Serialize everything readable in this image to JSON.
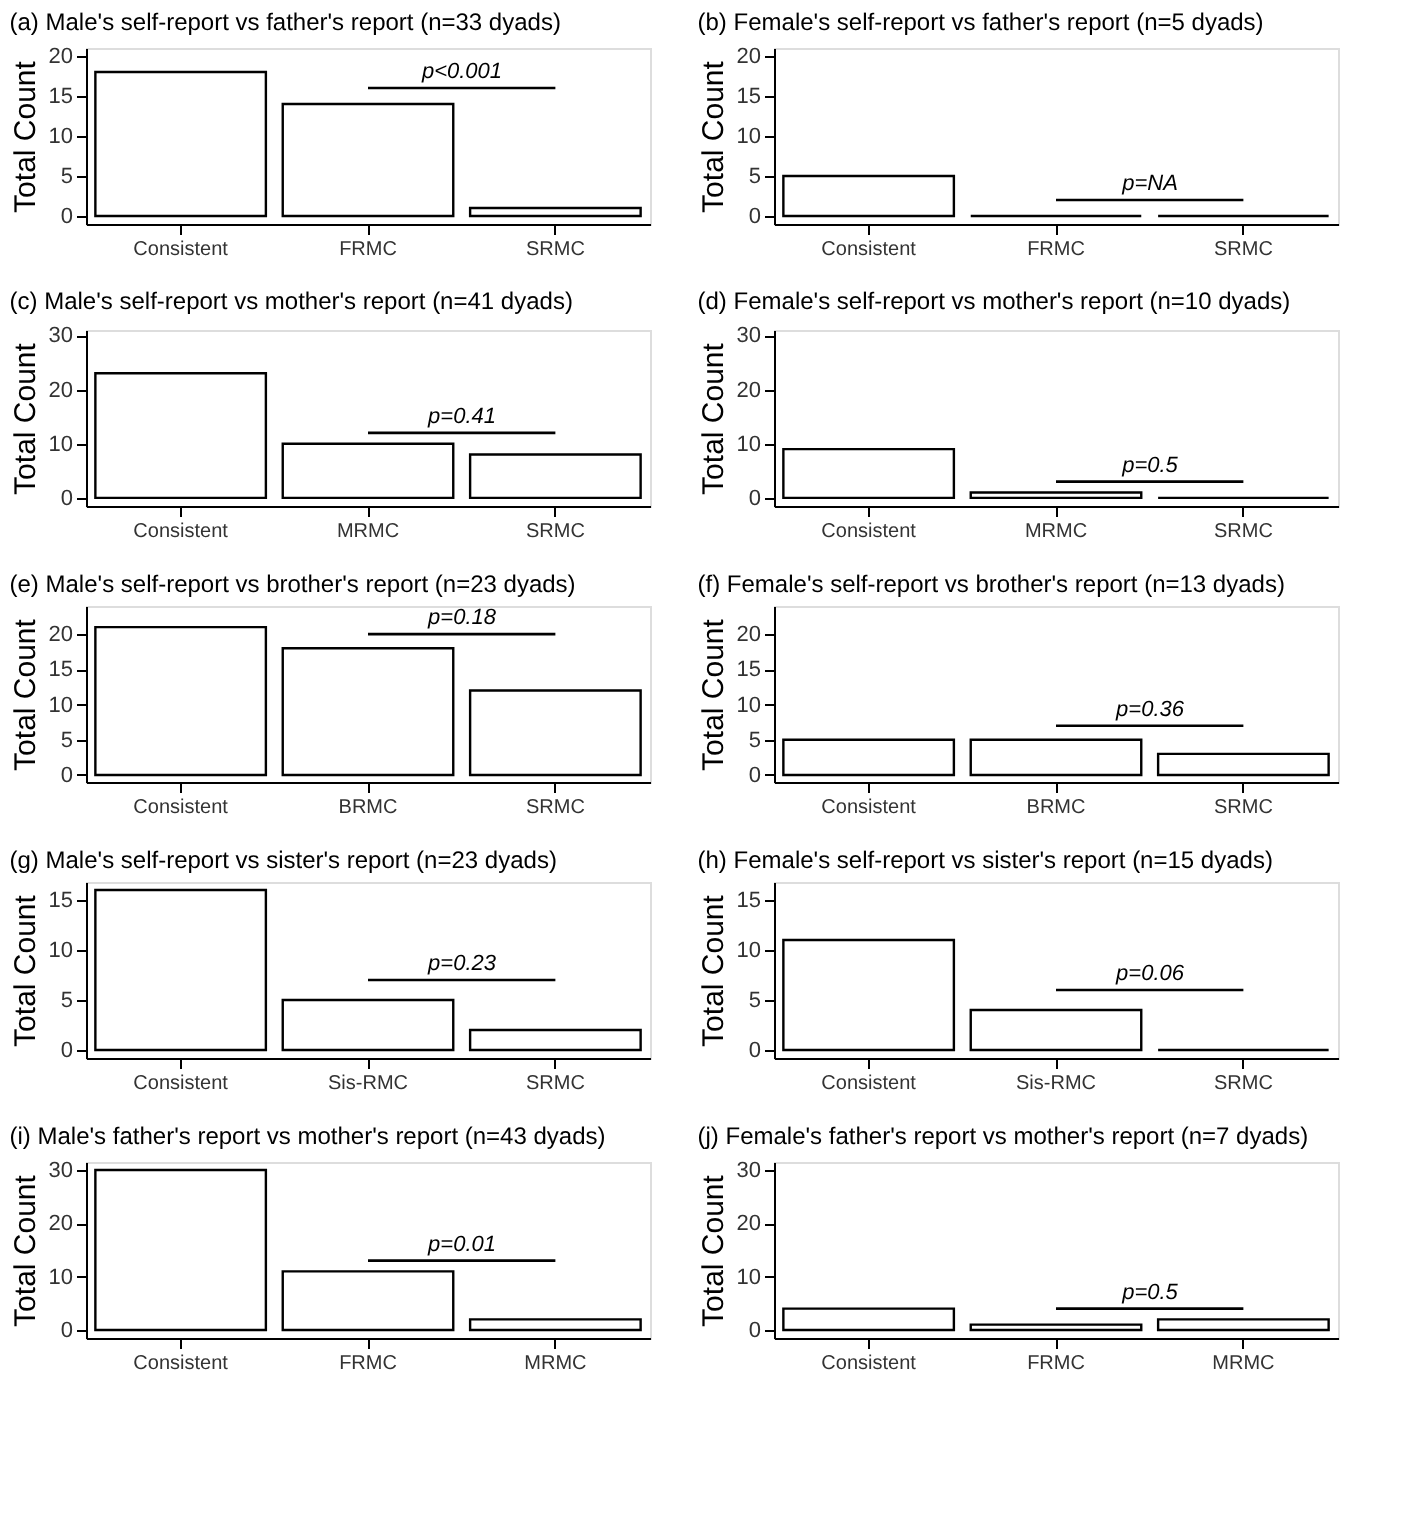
{
  "chart_data": [
    {
      "type": "bar",
      "title": "(a) Male's self-report vs father's report (n=33 dyads)",
      "ylabel": "Total Count",
      "categories": [
        "Consistent",
        "FRMC",
        "SRMC"
      ],
      "values": [
        18,
        14,
        1
      ],
      "color": "#ffffff",
      "ylim": [
        -1,
        21
      ],
      "yticks": [
        0,
        5,
        10,
        15,
        20
      ],
      "grid": false,
      "annotations": [
        "p<0.001"
      ]
    },
    {
      "type": "bar",
      "title": "(b) Female's self-report vs father's report (n=5 dyads)",
      "ylabel": "Total Count",
      "categories": [
        "Consistent",
        "FRMC",
        "SRMC"
      ],
      "values": [
        5,
        0,
        0
      ],
      "colors": [
        "#ffffff",
        "#000000",
        "#000000"
      ],
      "ylim": [
        -1,
        21
      ],
      "yticks": [
        0,
        5,
        10,
        15,
        20
      ],
      "grid": false,
      "annotations": [
        "p=NA"
      ]
    },
    {
      "type": "bar",
      "title": "(c) Male's self-report vs mother's report (n=41 dyads)",
      "ylabel": "Total Count",
      "categories": [
        "Consistent",
        "MRMC",
        "SRMC"
      ],
      "values": [
        23,
        10,
        8
      ],
      "color": "#ffffff",
      "ylim": [
        -1.5,
        31
      ],
      "yticks": [
        0,
        10,
        20,
        30
      ],
      "grid": false,
      "annotations": [
        "p=0.41"
      ]
    },
    {
      "type": "bar",
      "title": "(d) Female's self-report vs mother's report (n=10 dyads)",
      "ylabel": "Total Count",
      "categories": [
        "Consistent",
        "MRMC",
        "SRMC"
      ],
      "values": [
        9,
        1,
        0
      ],
      "colors": [
        "#ffffff",
        "#ffffff",
        "#000000"
      ],
      "ylim": [
        -1.5,
        31
      ],
      "yticks": [
        0,
        10,
        20,
        30
      ],
      "grid": false,
      "annotations": [
        "p=0.5"
      ]
    },
    {
      "type": "bar",
      "title": "(e) Male's self-report vs brother's report (n=23 dyads)",
      "ylabel": "Total Count",
      "categories": [
        "Consistent",
        "BRMC",
        "SRMC"
      ],
      "values": [
        21,
        18,
        12
      ],
      "color": "#ffffff",
      "ylim": [
        -1,
        24
      ],
      "yticks": [
        0,
        5,
        10,
        15,
        20
      ],
      "grid": false,
      "annotations": [
        "p=0.18"
      ]
    },
    {
      "type": "bar",
      "title": "(f) Female's self-report vs brother's report (n=13 dyads)",
      "ylabel": "Total Count",
      "categories": [
        "Consistent",
        "BRMC",
        "SRMC"
      ],
      "values": [
        5,
        5,
        3
      ],
      "color": "#ffffff",
      "ylim": [
        -1,
        24
      ],
      "yticks": [
        0,
        5,
        10,
        15,
        20
      ],
      "grid": false,
      "annotations": [
        "p=0.36"
      ]
    },
    {
      "type": "bar",
      "title": "(g) Male's self-report vs sister's report (n=23 dyads)",
      "ylabel": "Total Count",
      "categories": [
        "Consistent",
        "Sis-RMC",
        "SRMC"
      ],
      "values": [
        16,
        5,
        2
      ],
      "color": "#ffffff",
      "ylim": [
        -0.8,
        16.8
      ],
      "yticks": [
        0,
        5,
        10,
        15
      ],
      "grid": false,
      "annotations": [
        "p=0.23"
      ]
    },
    {
      "type": "bar",
      "title": "(h) Female's self-report vs sister's report (n=15 dyads)",
      "ylabel": "Total Count",
      "categories": [
        "Consistent",
        "Sis-RMC",
        "SRMC"
      ],
      "values": [
        11,
        4,
        0
      ],
      "colors": [
        "#ffffff",
        "#ffffff",
        "#000000"
      ],
      "ylim": [
        -0.8,
        16.8
      ],
      "yticks": [
        0,
        5,
        10,
        15
      ],
      "grid": false,
      "annotations": [
        "p=0.06"
      ]
    },
    {
      "type": "bar",
      "title": "(i) Male's father's report vs mother's report (n=43 dyads)",
      "ylabel": "Total Count",
      "categories": [
        "Consistent",
        "FRMC",
        "MRMC"
      ],
      "values": [
        30,
        11,
        2
      ],
      "color": "#ffffff",
      "ylim": [
        -1.5,
        31.5
      ],
      "yticks": [
        0,
        10,
        20,
        30
      ],
      "grid": false,
      "annotations": [
        "p=0.01"
      ]
    },
    {
      "type": "bar",
      "title": "(j) Female's father's report vs mother's report (n=7 dyads)",
      "ylabel": "Total Count",
      "categories": [
        "Consistent",
        "FRMC",
        "MRMC"
      ],
      "values": [
        4,
        1,
        2
      ],
      "color": "#ffffff",
      "ylim": [
        -1.5,
        31.5
      ],
      "yticks": [
        0,
        10,
        20,
        30
      ],
      "grid": false,
      "annotations": [
        "p=0.5"
      ]
    }
  ]
}
